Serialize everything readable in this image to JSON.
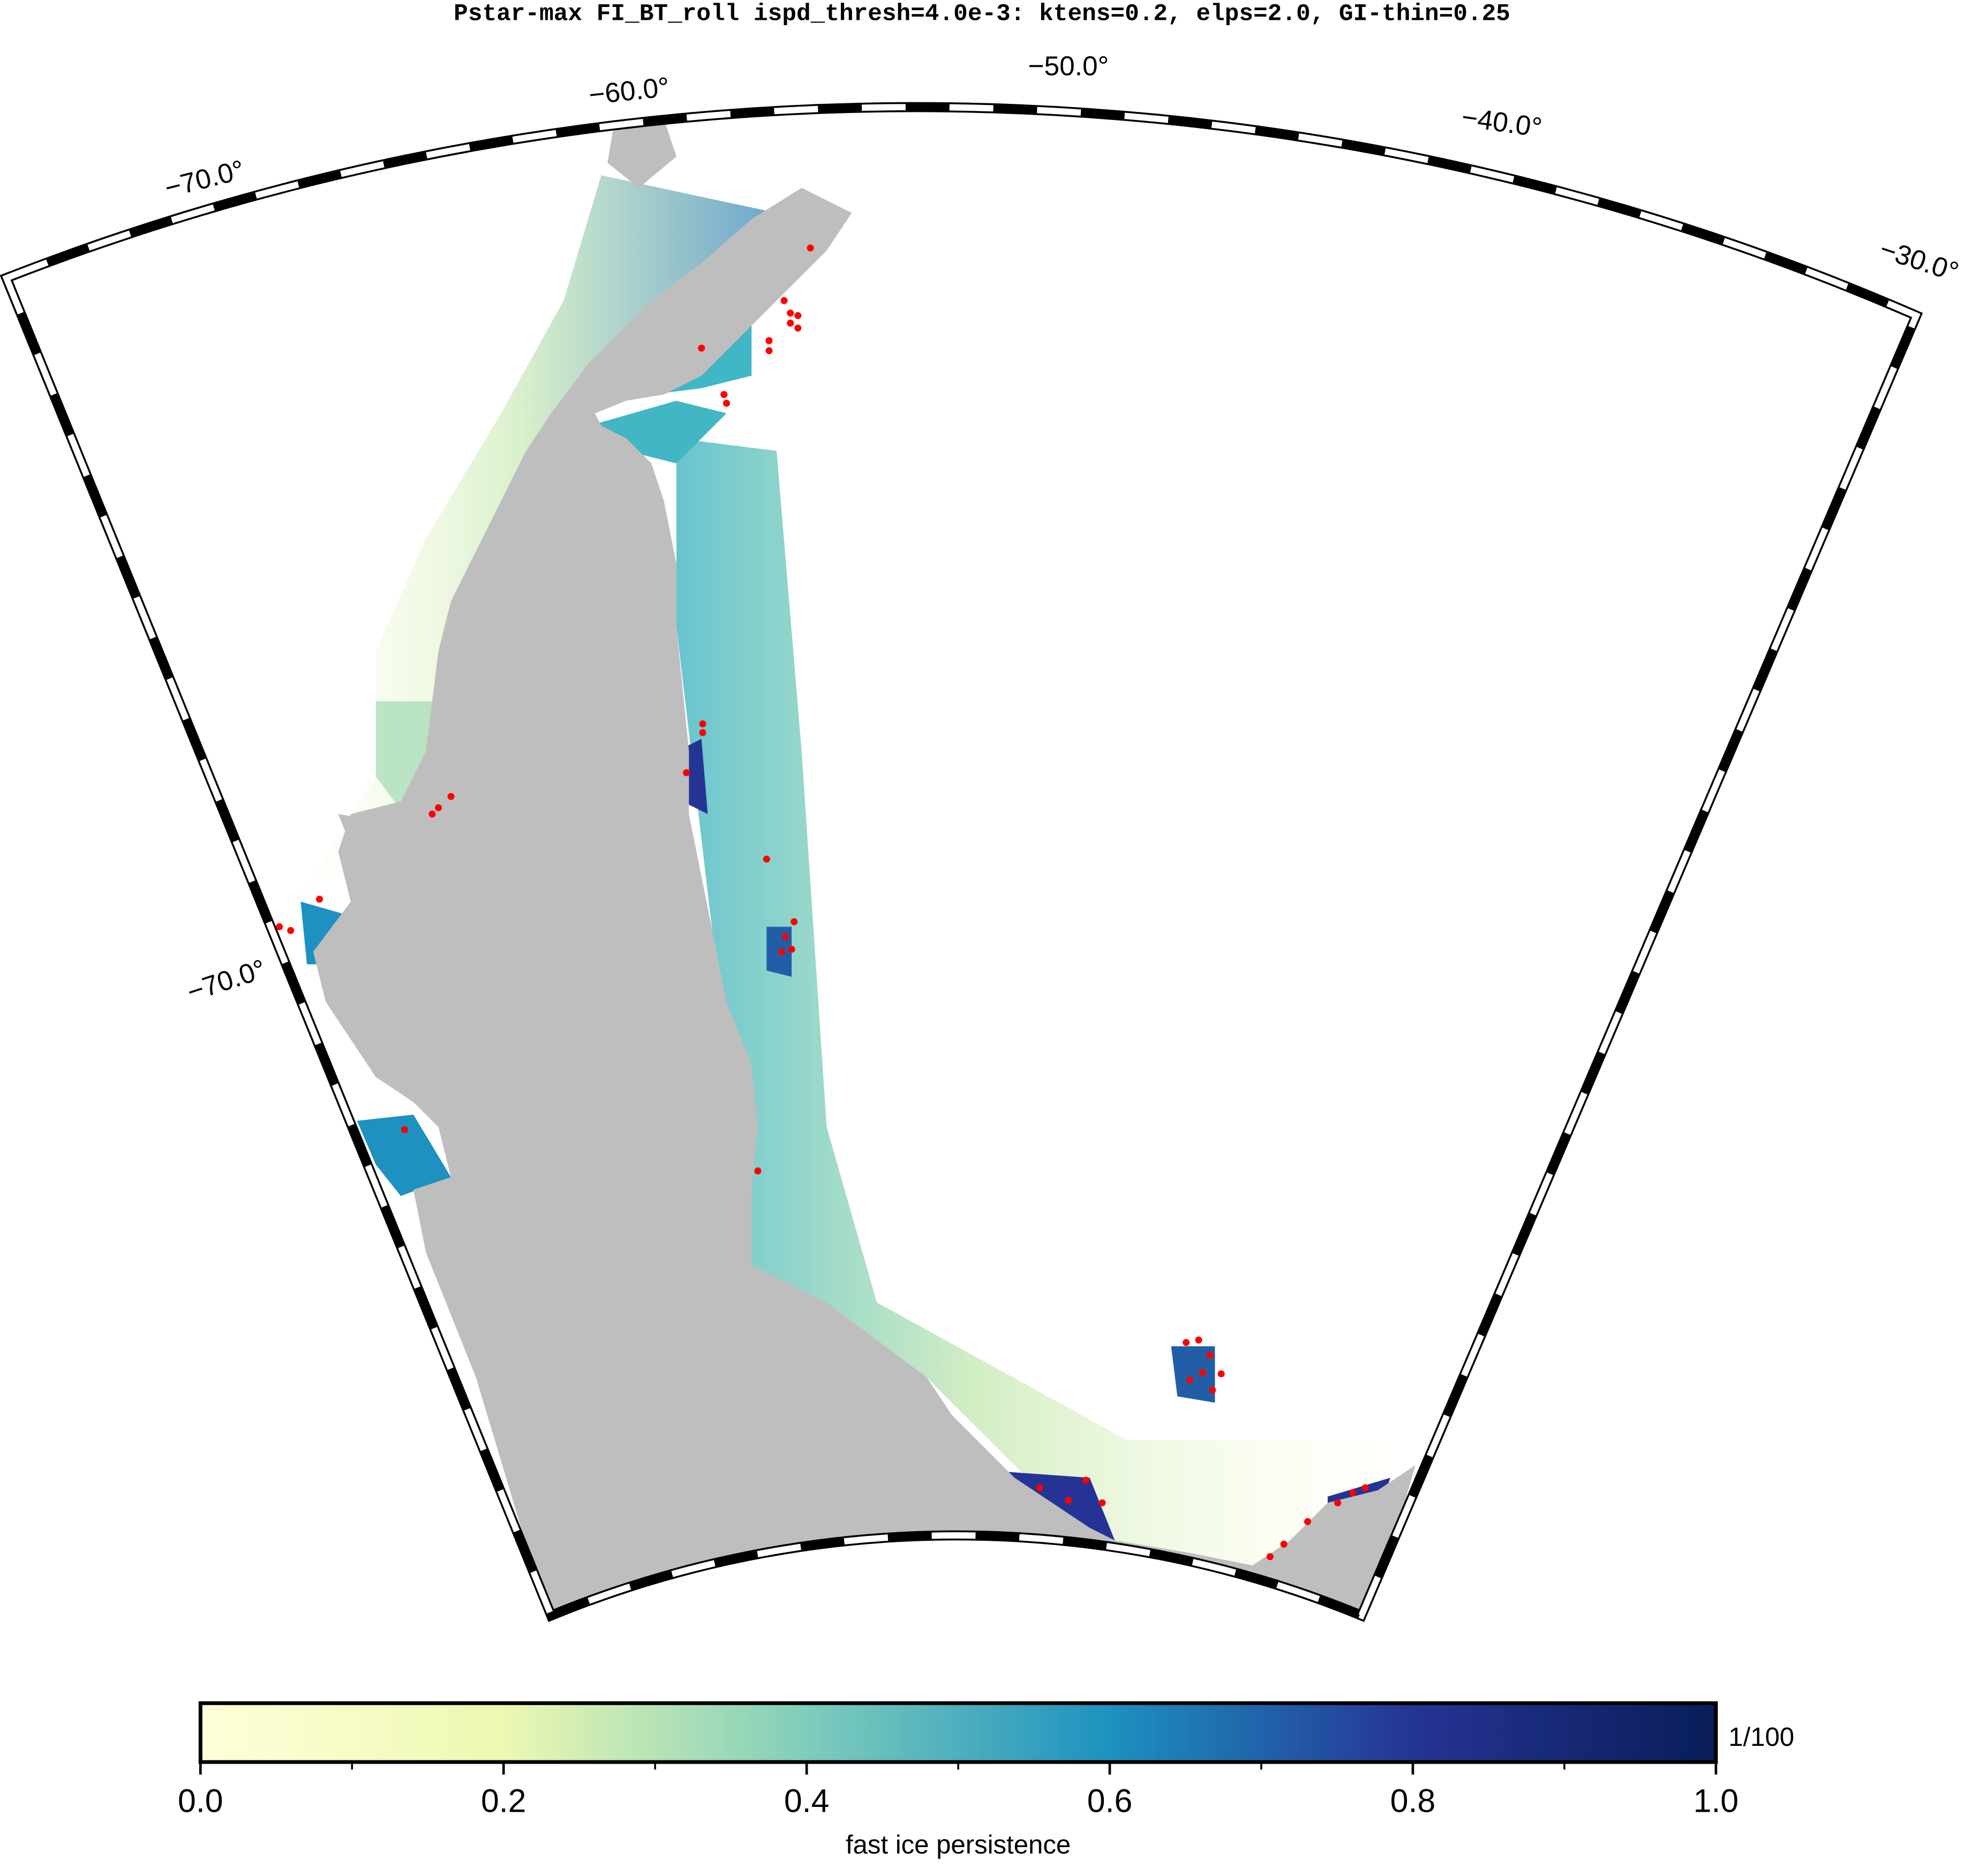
{
  "title": "Pstar-max FI_BT_roll ispd_thresh=4.0e-3: ktens=0.2, elps=2.0, GI-thin=0.25",
  "map": {
    "lon_labels": [
      "−70.0°",
      "−60.0°",
      "−50.0°",
      "−40.0°",
      "−30.0°"
    ],
    "lat_labels": [
      "−70.0°"
    ]
  },
  "colorbar": {
    "range": [
      0,
      1
    ],
    "ticks": [
      {
        "value": 0,
        "label": "0.0"
      },
      {
        "value": 0.2,
        "label": "0.2"
      },
      {
        "value": 0.4,
        "label": "0.4"
      },
      {
        "value": 0.6,
        "label": "0.6"
      },
      {
        "value": 0.8,
        "label": "0.8"
      },
      {
        "value": 1,
        "label": "1.0"
      }
    ],
    "unit": "1/100",
    "label": "fast ice persistence"
  }
}
